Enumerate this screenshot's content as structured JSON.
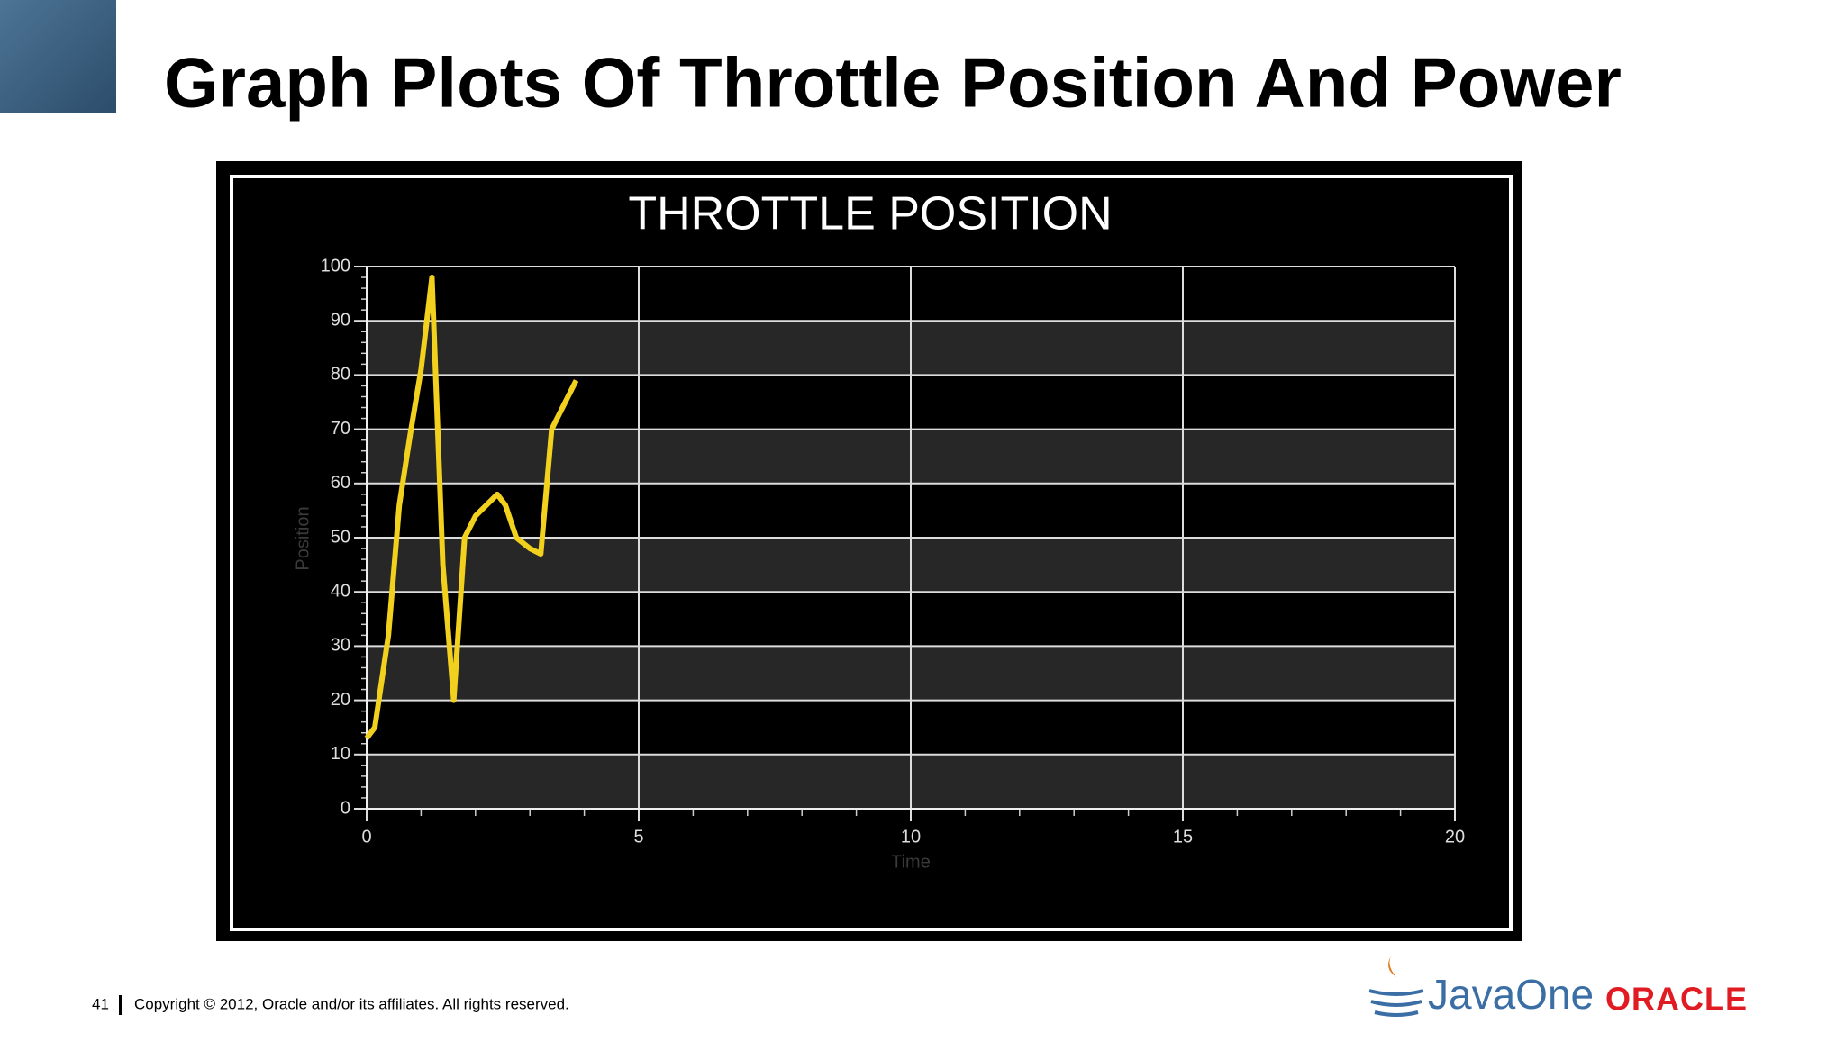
{
  "header": {
    "title": "Graph Plots Of Throttle Position And Power"
  },
  "footer": {
    "page": "41",
    "copyright": "Copyright © 2012, Oracle and/or its affiliates. All rights reserved.",
    "logos": [
      "JavaOne",
      "ORACLE"
    ]
  },
  "chart_data": {
    "type": "line",
    "title": "THROTTLE POSITION",
    "x_label": "Time",
    "y_label": "Position",
    "x": [
      0,
      0.15,
      0.4,
      0.6,
      0.8,
      1.0,
      1.2,
      1.4,
      1.6,
      1.8,
      2.0,
      2.4,
      2.55,
      2.75,
      3.0,
      3.2,
      3.4,
      3.6,
      3.85
    ],
    "values": [
      13,
      15,
      32,
      56,
      69,
      81,
      98,
      45,
      20,
      50,
      54,
      58,
      56,
      50,
      48,
      47,
      70,
      74,
      79
    ],
    "color": "#f2d01e",
    "xlim": [
      0,
      20
    ],
    "xticks": [
      0,
      5,
      10,
      15,
      20
    ],
    "ylim": [
      0,
      100
    ],
    "yticks": [
      0,
      10,
      20,
      30,
      40,
      50,
      60,
      70,
      80,
      90,
      100
    ],
    "grid": true
  }
}
